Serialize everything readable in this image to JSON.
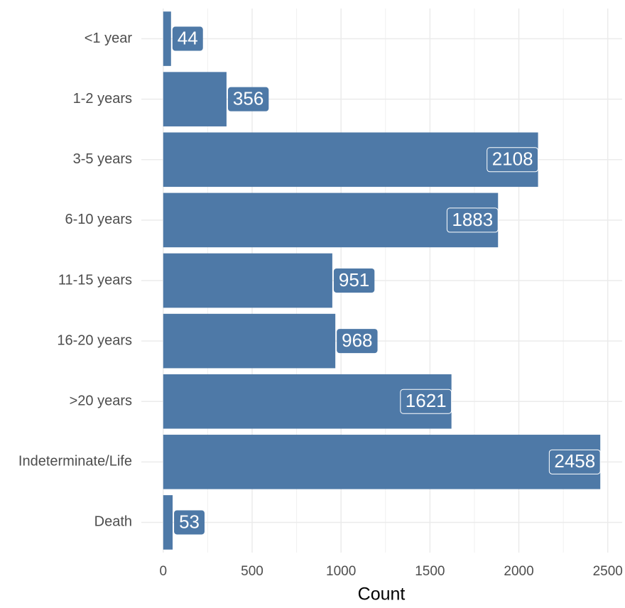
{
  "chart_data": {
    "type": "bar",
    "orientation": "horizontal",
    "categories": [
      "<1 year",
      "1-2 years",
      "3-5 years",
      "6-10 years",
      "11-15 years",
      "16-20 years",
      ">20 years",
      "Indeterminate/Life",
      "Death"
    ],
    "values": [
      44,
      356,
      2108,
      1883,
      951,
      968,
      1621,
      2458,
      53
    ],
    "color": "#4e79a7",
    "xlabel": "Count",
    "xlim": [
      -123,
      2581
    ],
    "xticks": [
      0,
      500,
      1000,
      1500,
      2000,
      2500
    ],
    "grid": true
  }
}
